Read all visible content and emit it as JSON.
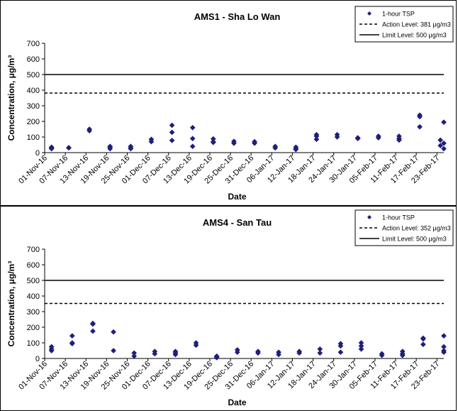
{
  "chart_data": [
    {
      "type": "scatter",
      "title": "AMS1 - Sha Lo Wan",
      "xlabel": "Date",
      "ylabel": "Concentration, μg/m³",
      "ylim": [
        0,
        700
      ],
      "y_ticks": [
        "0",
        "100",
        "200",
        "300",
        "400",
        "500",
        "600",
        "700"
      ],
      "x_range": [
        "2016-11-01",
        "2017-02-25"
      ],
      "x_tick_labels": [
        "01-Nov-16",
        "07-Nov-16",
        "13-Nov-16",
        "19-Nov-16",
        "25-Nov-16",
        "01-Dec-16",
        "07-Dec-16",
        "13-Dec-16",
        "19-Dec-16",
        "25-Dec-16",
        "31-Dec-16",
        "06-Jan-17",
        "12-Jan-17",
        "18-Jan-17",
        "24-Jan-17",
        "30-Jan-17",
        "05-Feb-17",
        "11-Feb-17",
        "17-Feb-17",
        "23-Feb-17"
      ],
      "grid": false,
      "legend_position": "top-right",
      "series": [
        {
          "name": "1-hour TSP",
          "color": "#1f1f7a",
          "marker": "diamond",
          "points": [
            [
              "2016-11-03",
              30
            ],
            [
              "2016-11-03",
              25
            ],
            [
              "2016-11-03",
              35
            ],
            [
              "2016-11-08",
              32
            ],
            [
              "2016-11-08",
              30
            ],
            [
              "2016-11-14",
              140
            ],
            [
              "2016-11-14",
              150
            ],
            [
              "2016-11-20",
              35
            ],
            [
              "2016-11-20",
              25
            ],
            [
              "2016-11-20",
              40
            ],
            [
              "2016-11-26",
              40
            ],
            [
              "2016-11-26",
              25
            ],
            [
              "2016-11-26",
              30
            ],
            [
              "2016-12-02",
              85
            ],
            [
              "2016-12-02",
              70
            ],
            [
              "2016-12-08",
              175
            ],
            [
              "2016-12-08",
              130
            ],
            [
              "2016-12-08",
              78
            ],
            [
              "2016-12-14",
              160
            ],
            [
              "2016-12-14",
              90
            ],
            [
              "2016-12-14",
              40
            ],
            [
              "2016-12-20",
              88
            ],
            [
              "2016-12-20",
              70
            ],
            [
              "2016-12-20",
              65
            ],
            [
              "2016-12-26",
              72
            ],
            [
              "2016-12-26",
              60
            ],
            [
              "2017-01-01",
              70
            ],
            [
              "2017-01-01",
              60
            ],
            [
              "2017-01-07",
              40
            ],
            [
              "2017-01-07",
              30
            ],
            [
              "2017-01-13",
              35
            ],
            [
              "2017-01-13",
              25
            ],
            [
              "2017-01-13",
              20
            ],
            [
              "2017-01-19",
              115
            ],
            [
              "2017-01-19",
              105
            ],
            [
              "2017-01-19",
              85
            ],
            [
              "2017-01-25",
              115
            ],
            [
              "2017-01-25",
              100
            ],
            [
              "2017-01-31",
              95
            ],
            [
              "2017-01-31",
              90
            ],
            [
              "2017-02-06",
              105
            ],
            [
              "2017-02-06",
              95
            ],
            [
              "2017-02-12",
              105
            ],
            [
              "2017-02-12",
              90
            ],
            [
              "2017-02-12",
              80
            ],
            [
              "2017-02-18",
              240
            ],
            [
              "2017-02-18",
              230
            ],
            [
              "2017-02-18",
              165
            ],
            [
              "2017-02-24",
              80
            ],
            [
              "2017-02-24",
              45
            ],
            [
              "2017-02-25",
              195
            ],
            [
              "2017-02-25",
              60
            ],
            [
              "2017-02-25",
              25
            ]
          ]
        }
      ],
      "reference_lines": [
        {
          "name": "Action Level: 381 μg/m3",
          "value": 381,
          "style": "dashed"
        },
        {
          "name": "Limit Level: 500 μg/m3",
          "value": 500,
          "style": "solid"
        }
      ]
    },
    {
      "type": "scatter",
      "title": "AMS4 - San Tau",
      "xlabel": "Date",
      "ylabel": "Concentration, μg/m³",
      "ylim": [
        0,
        700
      ],
      "y_ticks": [
        "0",
        "100",
        "200",
        "300",
        "400",
        "500",
        "600",
        "700"
      ],
      "x_range": [
        "2016-11-01",
        "2017-02-25"
      ],
      "x_tick_labels": [
        "01-Nov-16",
        "07-Nov-16",
        "13-Nov-16",
        "19-Nov-16",
        "25-Nov-16",
        "01-Dec-16",
        "07-Dec-16",
        "13-Dec-16",
        "19-Dec-16",
        "25-Dec-16",
        "31-Dec-16",
        "06-Jan-17",
        "12-Jan-17",
        "18-Jan-17",
        "24-Jan-17",
        "30-Jan-17",
        "05-Feb-17",
        "11-Feb-17",
        "17-Feb-17",
        "23-Feb-17"
      ],
      "grid": false,
      "legend_position": "top-right",
      "series": [
        {
          "name": "1-hour TSP",
          "color": "#1f1f7a",
          "marker": "diamond",
          "points": [
            [
              "2016-11-03",
              75
            ],
            [
              "2016-11-03",
              60
            ],
            [
              "2016-11-03",
              50
            ],
            [
              "2016-11-09",
              145
            ],
            [
              "2016-11-09",
              100
            ],
            [
              "2016-11-09",
              95
            ],
            [
              "2016-11-15",
              225
            ],
            [
              "2016-11-15",
              220
            ],
            [
              "2016-11-15",
              175
            ],
            [
              "2016-11-21",
              170
            ],
            [
              "2016-11-21",
              50
            ],
            [
              "2016-11-27",
              35
            ],
            [
              "2016-11-27",
              15
            ],
            [
              "2016-12-03",
              45
            ],
            [
              "2016-12-03",
              30
            ],
            [
              "2016-12-09",
              45
            ],
            [
              "2016-12-09",
              35
            ],
            [
              "2016-12-09",
              25
            ],
            [
              "2016-12-15",
              100
            ],
            [
              "2016-12-15",
              85
            ],
            [
              "2016-12-21",
              15
            ],
            [
              "2016-12-21",
              10
            ],
            [
              "2016-12-21",
              5
            ],
            [
              "2016-12-27",
              55
            ],
            [
              "2016-12-27",
              40
            ],
            [
              "2017-01-02",
              45
            ],
            [
              "2017-01-02",
              35
            ],
            [
              "2017-01-08",
              40
            ],
            [
              "2017-01-08",
              25
            ],
            [
              "2017-01-14",
              45
            ],
            [
              "2017-01-14",
              35
            ],
            [
              "2017-01-20",
              60
            ],
            [
              "2017-01-20",
              35
            ],
            [
              "2017-01-26",
              95
            ],
            [
              "2017-01-26",
              80
            ],
            [
              "2017-01-26",
              40
            ],
            [
              "2017-02-01",
              100
            ],
            [
              "2017-02-01",
              80
            ],
            [
              "2017-02-01",
              60
            ],
            [
              "2017-02-07",
              30
            ],
            [
              "2017-02-07",
              20
            ],
            [
              "2017-02-13",
              45
            ],
            [
              "2017-02-13",
              30
            ],
            [
              "2017-02-13",
              20
            ],
            [
              "2017-02-19",
              130
            ],
            [
              "2017-02-19",
              125
            ],
            [
              "2017-02-19",
              90
            ],
            [
              "2017-02-25",
              50
            ],
            [
              "2017-02-25",
              40
            ],
            [
              "2017-02-25",
              145
            ],
            [
              "2017-02-25",
              75
            ]
          ]
        }
      ],
      "reference_lines": [
        {
          "name": "Action Level: 352 μg/m3",
          "value": 352,
          "style": "dashed"
        },
        {
          "name": "Limit Level: 500 μg/m3",
          "value": 500,
          "style": "solid"
        }
      ]
    }
  ]
}
